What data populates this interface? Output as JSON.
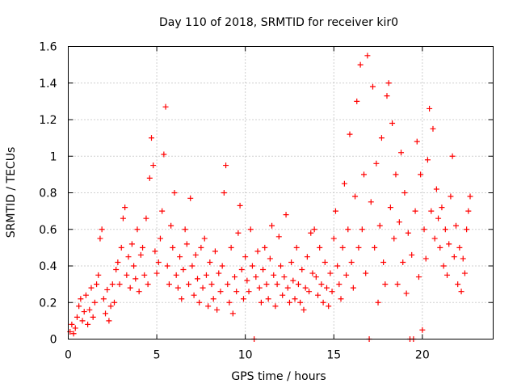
{
  "chart_data": {
    "type": "scatter",
    "title": "Day 110 of 2018, SRMTID for receiver kir0",
    "xlabel": "GPS time / hours",
    "ylabel": "SRMTID / TECUs",
    "xlim": [
      0,
      24
    ],
    "ylim": [
      0,
      1.6
    ],
    "xticks": [
      0,
      5,
      10,
      15,
      20
    ],
    "xtick_labels": [
      "0",
      "5",
      "10",
      "15",
      "20"
    ],
    "yticks": [
      0,
      0.2,
      0.4,
      0.6,
      0.8,
      1.0,
      1.2,
      1.4,
      1.6
    ],
    "ytick_labels": [
      "0",
      "0.2",
      "0.4",
      "0.6",
      "0.8",
      "1",
      "1.2",
      "1.4",
      "1.6"
    ],
    "grid": true,
    "marker": "plus",
    "marker_color": "#ff0000",
    "series": [
      {
        "name": "SRMTID",
        "points": [
          [
            0.1,
            0.04
          ],
          [
            0.2,
            0.08
          ],
          [
            0.3,
            0.03
          ],
          [
            0.4,
            0.06
          ],
          [
            0.5,
            0.12
          ],
          [
            0.6,
            0.18
          ],
          [
            0.7,
            0.22
          ],
          [
            0.8,
            0.1
          ],
          [
            0.9,
            0.15
          ],
          [
            1.0,
            0.24
          ],
          [
            1.1,
            0.08
          ],
          [
            1.2,
            0.16
          ],
          [
            1.3,
            0.28
          ],
          [
            1.4,
            0.12
          ],
          [
            1.5,
            0.2
          ],
          [
            1.6,
            0.3
          ],
          [
            1.7,
            0.35
          ],
          [
            1.8,
            0.55
          ],
          [
            1.9,
            0.6
          ],
          [
            2.0,
            0.22
          ],
          [
            2.1,
            0.14
          ],
          [
            2.2,
            0.27
          ],
          [
            2.3,
            0.1
          ],
          [
            2.4,
            0.18
          ],
          [
            2.5,
            0.3
          ],
          [
            2.6,
            0.2
          ],
          [
            2.7,
            0.38
          ],
          [
            2.8,
            0.42
          ],
          [
            2.9,
            0.3
          ],
          [
            3.0,
            0.5
          ],
          [
            3.1,
            0.66
          ],
          [
            3.2,
            0.72
          ],
          [
            3.3,
            0.35
          ],
          [
            3.4,
            0.45
          ],
          [
            3.5,
            0.28
          ],
          [
            3.6,
            0.52
          ],
          [
            3.7,
            0.4
          ],
          [
            3.8,
            0.33
          ],
          [
            3.9,
            0.6
          ],
          [
            4.0,
            0.26
          ],
          [
            4.1,
            0.46
          ],
          [
            4.2,
            0.5
          ],
          [
            4.3,
            0.35
          ],
          [
            4.4,
            0.66
          ],
          [
            4.5,
            0.3
          ],
          [
            4.6,
            0.88
          ],
          [
            4.7,
            1.1
          ],
          [
            4.8,
            0.95
          ],
          [
            4.9,
            0.48
          ],
          [
            5.0,
            0.36
          ],
          [
            5.1,
            0.42
          ],
          [
            5.2,
            0.55
          ],
          [
            5.3,
            0.7
          ],
          [
            5.4,
            1.01
          ],
          [
            5.5,
            1.27
          ],
          [
            5.6,
            0.4
          ],
          [
            5.7,
            0.3
          ],
          [
            5.8,
            0.62
          ],
          [
            5.9,
            0.5
          ],
          [
            6.0,
            0.8
          ],
          [
            6.1,
            0.35
          ],
          [
            6.2,
            0.28
          ],
          [
            6.3,
            0.45
          ],
          [
            6.4,
            0.22
          ],
          [
            6.5,
            0.38
          ],
          [
            6.6,
            0.6
          ],
          [
            6.7,
            0.52
          ],
          [
            6.8,
            0.3
          ],
          [
            6.9,
            0.77
          ],
          [
            7.0,
            0.4
          ],
          [
            7.1,
            0.24
          ],
          [
            7.2,
            0.46
          ],
          [
            7.3,
            0.33
          ],
          [
            7.4,
            0.2
          ],
          [
            7.5,
            0.5
          ],
          [
            7.6,
            0.28
          ],
          [
            7.7,
            0.55
          ],
          [
            7.8,
            0.35
          ],
          [
            7.9,
            0.18
          ],
          [
            8.0,
            0.42
          ],
          [
            8.1,
            0.3
          ],
          [
            8.2,
            0.22
          ],
          [
            8.3,
            0.48
          ],
          [
            8.4,
            0.16
          ],
          [
            8.5,
            0.36
          ],
          [
            8.6,
            0.26
          ],
          [
            8.7,
            0.4
          ],
          [
            8.8,
            0.8
          ],
          [
            8.9,
            0.95
          ],
          [
            9.0,
            0.3
          ],
          [
            9.1,
            0.2
          ],
          [
            9.2,
            0.5
          ],
          [
            9.3,
            0.14
          ],
          [
            9.4,
            0.34
          ],
          [
            9.5,
            0.26
          ],
          [
            9.6,
            0.58
          ],
          [
            9.7,
            0.73
          ],
          [
            9.8,
            0.38
          ],
          [
            9.9,
            0.22
          ],
          [
            10.0,
            0.45
          ],
          [
            10.1,
            0.32
          ],
          [
            10.2,
            0.26
          ],
          [
            10.3,
            0.6
          ],
          [
            10.4,
            0.4
          ],
          [
            10.5,
            0.0
          ],
          [
            10.6,
            0.34
          ],
          [
            10.7,
            0.48
          ],
          [
            10.8,
            0.28
          ],
          [
            10.9,
            0.2
          ],
          [
            11.0,
            0.38
          ],
          [
            11.1,
            0.5
          ],
          [
            11.2,
            0.3
          ],
          [
            11.3,
            0.22
          ],
          [
            11.4,
            0.44
          ],
          [
            11.5,
            0.62
          ],
          [
            11.6,
            0.35
          ],
          [
            11.7,
            0.18
          ],
          [
            11.8,
            0.3
          ],
          [
            11.9,
            0.56
          ],
          [
            12.0,
            0.4
          ],
          [
            12.1,
            0.24
          ],
          [
            12.2,
            0.34
          ],
          [
            12.3,
            0.68
          ],
          [
            12.4,
            0.28
          ],
          [
            12.5,
            0.2
          ],
          [
            12.6,
            0.42
          ],
          [
            12.7,
            0.32
          ],
          [
            12.8,
            0.22
          ],
          [
            12.9,
            0.5
          ],
          [
            13.0,
            0.3
          ],
          [
            13.1,
            0.2
          ],
          [
            13.2,
            0.38
          ],
          [
            13.3,
            0.16
          ],
          [
            13.4,
            0.28
          ],
          [
            13.5,
            0.45
          ],
          [
            13.6,
            0.26
          ],
          [
            13.7,
            0.58
          ],
          [
            13.8,
            0.36
          ],
          [
            13.9,
            0.6
          ],
          [
            14.0,
            0.34
          ],
          [
            14.1,
            0.24
          ],
          [
            14.2,
            0.5
          ],
          [
            14.3,
            0.3
          ],
          [
            14.4,
            0.2
          ],
          [
            14.5,
            0.42
          ],
          [
            14.6,
            0.28
          ],
          [
            14.7,
            0.18
          ],
          [
            14.8,
            0.36
          ],
          [
            14.9,
            0.26
          ],
          [
            15.0,
            0.55
          ],
          [
            15.1,
            0.7
          ],
          [
            15.2,
            0.4
          ],
          [
            15.3,
            0.3
          ],
          [
            15.4,
            0.22
          ],
          [
            15.5,
            0.5
          ],
          [
            15.6,
            0.85
          ],
          [
            15.7,
            0.35
          ],
          [
            15.8,
            0.6
          ],
          [
            15.9,
            1.12
          ],
          [
            16.0,
            0.42
          ],
          [
            16.1,
            0.28
          ],
          [
            16.2,
            0.78
          ],
          [
            16.3,
            1.3
          ],
          [
            16.4,
            0.5
          ],
          [
            16.5,
            1.5
          ],
          [
            16.6,
            0.6
          ],
          [
            16.7,
            0.9
          ],
          [
            16.8,
            0.36
          ],
          [
            16.9,
            1.55
          ],
          [
            17.0,
            0.0
          ],
          [
            17.1,
            0.75
          ],
          [
            17.2,
            1.38
          ],
          [
            17.3,
            0.5
          ],
          [
            17.4,
            0.96
          ],
          [
            17.5,
            0.2
          ],
          [
            17.6,
            0.62
          ],
          [
            17.7,
            1.1
          ],
          [
            17.8,
            0.42
          ],
          [
            17.9,
            0.3
          ],
          [
            18.0,
            1.33
          ],
          [
            18.1,
            1.4
          ],
          [
            18.2,
            0.72
          ],
          [
            18.3,
            1.18
          ],
          [
            18.4,
            0.55
          ],
          [
            18.5,
            0.9
          ],
          [
            18.6,
            0.3
          ],
          [
            18.7,
            0.64
          ],
          [
            18.8,
            1.02
          ],
          [
            18.9,
            0.42
          ],
          [
            19.0,
            0.8
          ],
          [
            19.1,
            0.25
          ],
          [
            19.2,
            0.58
          ],
          [
            19.3,
            0.0
          ],
          [
            19.4,
            0.46
          ],
          [
            19.5,
            0.0
          ],
          [
            19.6,
            0.7
          ],
          [
            19.7,
            1.08
          ],
          [
            19.8,
            0.34
          ],
          [
            19.9,
            0.9
          ],
          [
            20.0,
            0.05
          ],
          [
            20.1,
            0.6
          ],
          [
            20.2,
            0.44
          ],
          [
            20.3,
            0.98
          ],
          [
            20.4,
            1.26
          ],
          [
            20.5,
            0.7
          ],
          [
            20.6,
            1.15
          ],
          [
            20.7,
            0.55
          ],
          [
            20.8,
            0.82
          ],
          [
            20.9,
            0.66
          ],
          [
            21.0,
            0.5
          ],
          [
            21.1,
            0.72
          ],
          [
            21.2,
            0.4
          ],
          [
            21.3,
            0.6
          ],
          [
            21.4,
            0.35
          ],
          [
            21.5,
            0.52
          ],
          [
            21.6,
            0.78
          ],
          [
            21.7,
            1.0
          ],
          [
            21.8,
            0.45
          ],
          [
            21.9,
            0.62
          ],
          [
            22.0,
            0.3
          ],
          [
            22.1,
            0.5
          ],
          [
            22.2,
            0.26
          ],
          [
            22.3,
            0.44
          ],
          [
            22.4,
            0.36
          ],
          [
            22.5,
            0.6
          ],
          [
            22.6,
            0.7
          ],
          [
            22.7,
            0.78
          ]
        ]
      }
    ]
  }
}
